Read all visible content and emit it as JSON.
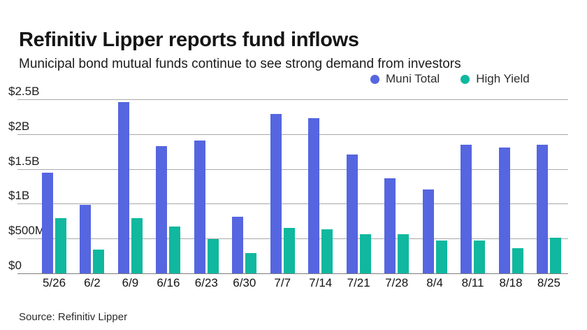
{
  "header": {
    "title": "Refinitiv Lipper reports fund inflows",
    "subtitle": "Municipal bond mutual funds continue to see strong demand from investors"
  },
  "legend": {
    "items": [
      {
        "label": "Muni Total",
        "color": "#5566e0"
      },
      {
        "label": "High Yield",
        "color": "#0fb89e"
      }
    ]
  },
  "footer": {
    "source": "Source: Refinitiv Lipper"
  },
  "chart_data": {
    "type": "bar",
    "title": "Refinitiv Lipper reports fund inflows",
    "subtitle": "Municipal bond mutual funds continue to see strong demand from investors",
    "categories": [
      "5/26",
      "6/2",
      "6/9",
      "6/16",
      "6/23",
      "6/30",
      "7/7",
      "7/14",
      "7/21",
      "7/28",
      "8/4",
      "8/11",
      "8/18",
      "8/25"
    ],
    "series": [
      {
        "name": "Muni Total",
        "color": "#5566e0",
        "values_millions": [
          1450,
          980,
          2460,
          1830,
          1910,
          810,
          2290,
          2230,
          1710,
          1370,
          1200,
          1850,
          1810,
          1850
        ]
      },
      {
        "name": "High Yield",
        "color": "#0fb89e",
        "values_millions": [
          790,
          340,
          790,
          670,
          490,
          290,
          650,
          630,
          560,
          560,
          470,
          470,
          360,
          510
        ]
      }
    ],
    "xlabel": "",
    "ylabel": "",
    "y_axis": {
      "unit": "millions USD",
      "min_millions": 0,
      "max_millions": 2500,
      "tick_values_millions": [
        0,
        500,
        1000,
        1500,
        2000,
        2500
      ],
      "tick_labels": [
        "$0",
        "$500M",
        "$1B",
        "$1.5B",
        "$2B",
        "$2.5B"
      ]
    },
    "grid": true,
    "legend_position": "top-right"
  }
}
